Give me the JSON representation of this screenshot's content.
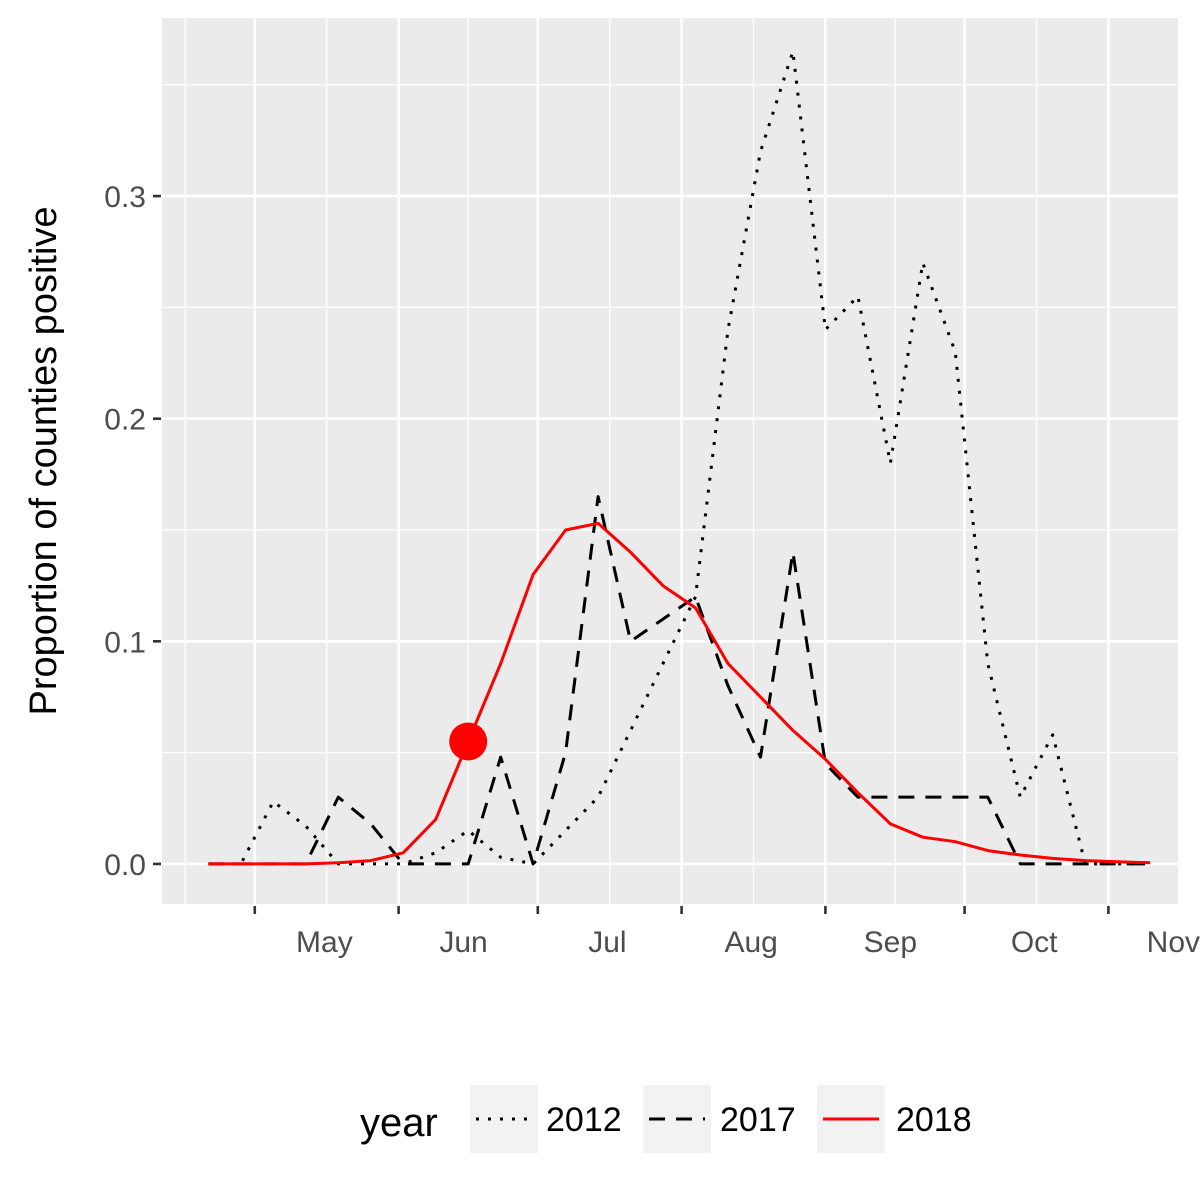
{
  "chart_data": {
    "type": "line",
    "ylabel": "Proportion of counties positive",
    "xlabel": "",
    "title": "",
    "x_tick_labels": [
      "May",
      "Jun",
      "Jul",
      "Aug",
      "Sep",
      "Oct",
      "Nov"
    ],
    "y_ticks": [
      0.0,
      0.1,
      0.2,
      0.3
    ],
    "y_tick_labels": [
      "0.0",
      "0.1",
      "0.2",
      "0.3"
    ],
    "ylim": [
      -0.018,
      0.38
    ],
    "xlim": [
      "2000-04-11",
      "2000-11-16"
    ],
    "grid": true,
    "legend": {
      "title": "year",
      "position": "bottom"
    },
    "series": [
      {
        "name": "2012",
        "style": "dotted",
        "color": "#000000",
        "points": [
          [
            "2000-04-21",
            0
          ],
          [
            "2000-04-28",
            0
          ],
          [
            "2000-05-05",
            0.028
          ],
          [
            "2000-05-12",
            0.017
          ],
          [
            "2000-05-19",
            0
          ],
          [
            "2000-05-26",
            0
          ],
          [
            "2000-06-02",
            0
          ],
          [
            "2000-06-09",
            0.005
          ],
          [
            "2000-06-16",
            0.015
          ],
          [
            "2000-06-23",
            0.003
          ],
          [
            "2000-06-30",
            0
          ],
          [
            "2000-07-07",
            0.015
          ],
          [
            "2000-07-14",
            0.03
          ],
          [
            "2000-07-21",
            0.06
          ],
          [
            "2000-07-28",
            0.09
          ],
          [
            "2000-08-04",
            0.12
          ],
          [
            "2000-08-11",
            0.24
          ],
          [
            "2000-08-18",
            0.32
          ],
          [
            "2000-08-25",
            0.365
          ],
          [
            "2000-09-01",
            0.24
          ],
          [
            "2000-09-08",
            0.255
          ],
          [
            "2000-09-15",
            0.18
          ],
          [
            "2000-09-22",
            0.27
          ],
          [
            "2000-09-29",
            0.23
          ],
          [
            "2000-10-06",
            0.09
          ],
          [
            "2000-10-13",
            0.03
          ],
          [
            "2000-10-20",
            0.058
          ],
          [
            "2000-10-27",
            0
          ],
          [
            "2000-11-03",
            0
          ],
          [
            "2000-11-10",
            0
          ]
        ]
      },
      {
        "name": "2017",
        "style": "dashed",
        "color": "#000000",
        "points": [
          [
            "2000-04-21",
            0
          ],
          [
            "2000-04-28",
            0
          ],
          [
            "2000-05-05",
            0
          ],
          [
            "2000-05-12",
            0
          ],
          [
            "2000-05-19",
            0.03
          ],
          [
            "2000-05-26",
            0.018
          ],
          [
            "2000-06-02",
            0
          ],
          [
            "2000-06-09",
            0
          ],
          [
            "2000-06-16",
            0
          ],
          [
            "2000-06-23",
            0.048
          ],
          [
            "2000-06-30",
            0
          ],
          [
            "2000-07-07",
            0.05
          ],
          [
            "2000-07-14",
            0.165
          ],
          [
            "2000-07-21",
            0.1
          ],
          [
            "2000-07-28",
            0.11
          ],
          [
            "2000-08-04",
            0.12
          ],
          [
            "2000-08-11",
            0.08
          ],
          [
            "2000-08-18",
            0.048
          ],
          [
            "2000-08-25",
            0.14
          ],
          [
            "2000-09-01",
            0.045
          ],
          [
            "2000-09-08",
            0.03
          ],
          [
            "2000-09-15",
            0.03
          ],
          [
            "2000-09-22",
            0.03
          ],
          [
            "2000-09-29",
            0.03
          ],
          [
            "2000-10-06",
            0.03
          ],
          [
            "2000-10-13",
            0
          ],
          [
            "2000-10-20",
            0
          ],
          [
            "2000-10-27",
            0
          ],
          [
            "2000-11-03",
            0
          ],
          [
            "2000-11-10",
            0
          ]
        ]
      },
      {
        "name": "2018",
        "style": "solid",
        "color": "#ff0000",
        "points": [
          [
            "2000-04-21",
            0
          ],
          [
            "2000-04-28",
            0
          ],
          [
            "2000-05-05",
            0
          ],
          [
            "2000-05-12",
            0
          ],
          [
            "2000-05-19",
            0.0005
          ],
          [
            "2000-05-26",
            0.0015
          ],
          [
            "2000-06-02",
            0.005
          ],
          [
            "2000-06-09",
            0.02
          ],
          [
            "2000-06-16",
            0.055
          ],
          [
            "2000-06-23",
            0.09
          ],
          [
            "2000-06-30",
            0.13
          ],
          [
            "2000-07-07",
            0.15
          ],
          [
            "2000-07-14",
            0.153
          ],
          [
            "2000-07-21",
            0.14
          ],
          [
            "2000-07-28",
            0.125
          ],
          [
            "2000-08-04",
            0.115
          ],
          [
            "2000-08-11",
            0.09
          ],
          [
            "2000-08-18",
            0.075
          ],
          [
            "2000-08-25",
            0.06
          ],
          [
            "2000-09-01",
            0.047
          ],
          [
            "2000-09-08",
            0.032
          ],
          [
            "2000-09-15",
            0.018
          ],
          [
            "2000-09-22",
            0.012
          ],
          [
            "2000-09-29",
            0.01
          ],
          [
            "2000-10-06",
            0.006
          ],
          [
            "2000-10-13",
            0.004
          ],
          [
            "2000-10-20",
            0.0025
          ],
          [
            "2000-10-27",
            0.0015
          ],
          [
            "2000-11-03",
            0.001
          ],
          [
            "2000-11-10",
            0.0005
          ]
        ]
      }
    ],
    "highlight_point": {
      "series": "2018",
      "x": "2000-06-16",
      "y": 0.055,
      "color": "#ff0000"
    }
  }
}
